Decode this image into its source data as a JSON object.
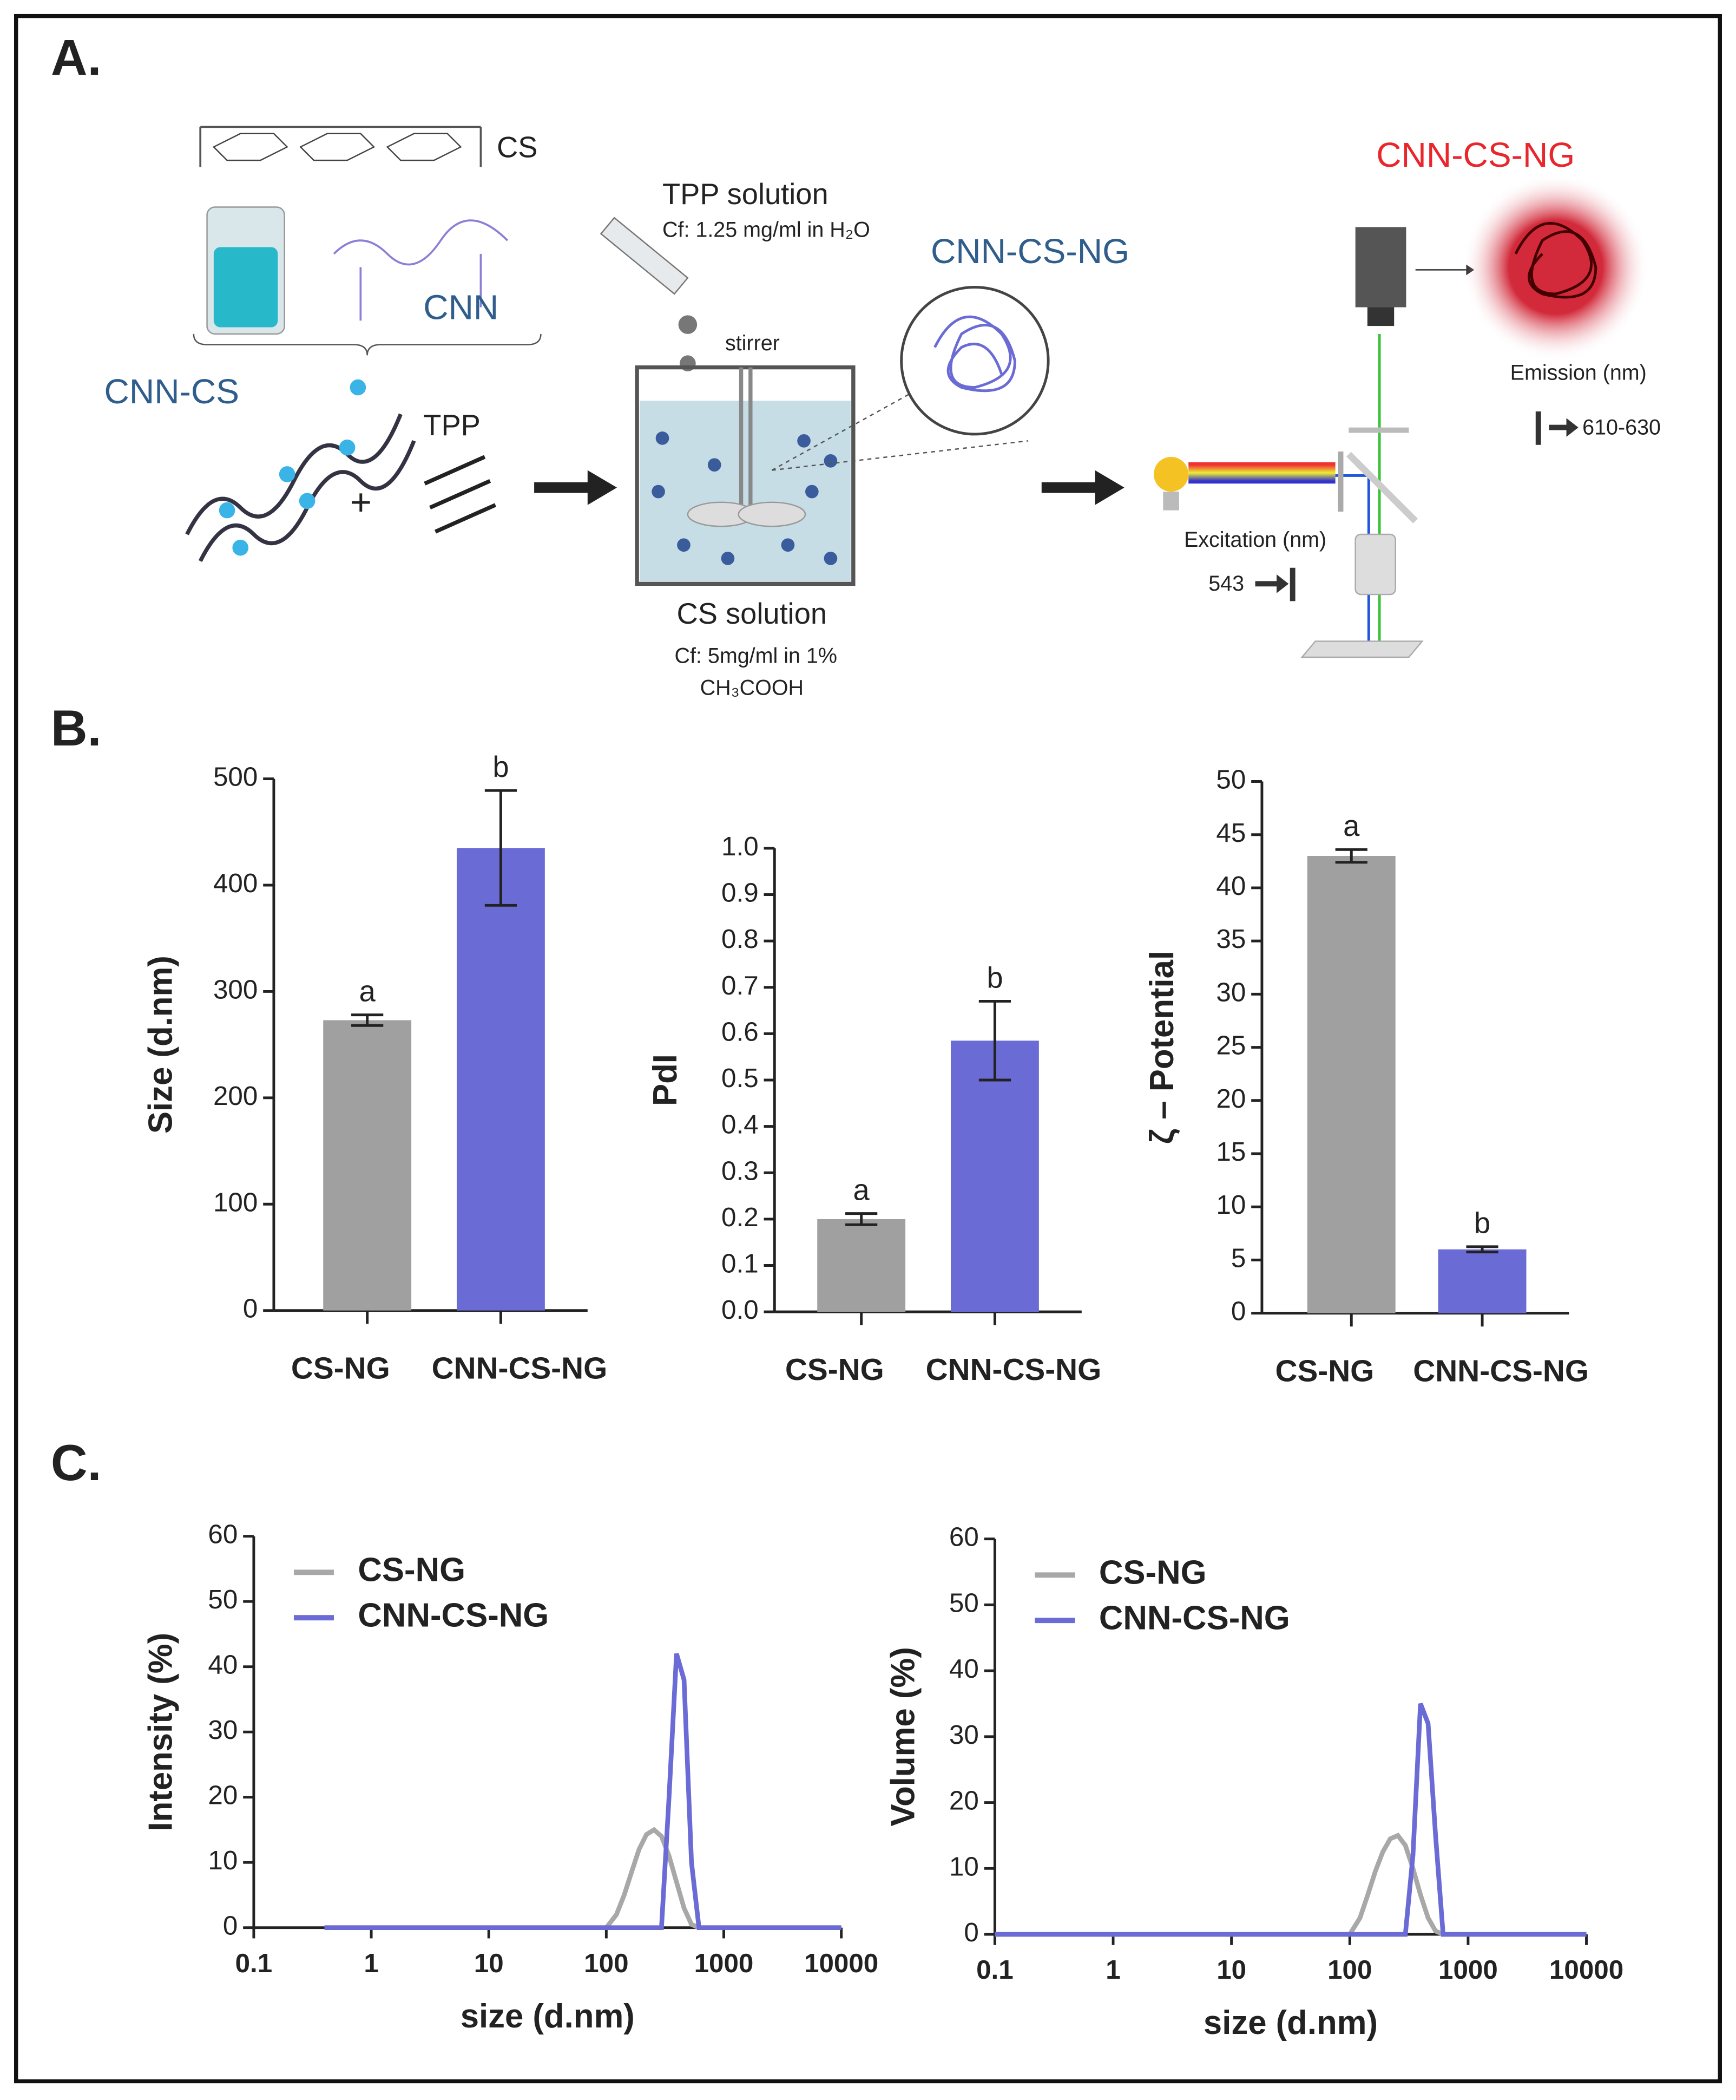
{
  "panels": [
    "A.",
    "B.",
    "C."
  ],
  "diagram": {
    "cs": "CS",
    "cnn": "CNN",
    "cnn_cs": "CNN-CS",
    "tpp": "TPP",
    "plus": "+",
    "tpp_solution": "TPP solution",
    "tpp_conc": "Cf: 1.25 mg/ml in H₂O",
    "stirrer": "stirrer",
    "ng_blue": "CNN-CS-NG",
    "cs_solution": "CS solution",
    "cs_conc": "Cf: 5mg/ml in 1%",
    "acid": "CH₃COOH",
    "ng_red": "CNN-CS-NG",
    "emission": "Emission (nm)",
    "emission_range": "610-630",
    "excitation": "Excitation (nm)",
    "excitation_value": "543"
  },
  "chart_data": [
    {
      "type": "bar",
      "ylabel": "Size (d.nm)",
      "categories": [
        "CS-NG",
        "CNN-CS-NG"
      ],
      "values": [
        273,
        435
      ],
      "errors": [
        5,
        54
      ],
      "annotations": [
        "a",
        "b"
      ],
      "colors": [
        "#a0a0a0",
        "#6b6bd6"
      ],
      "ylim": [
        0,
        500
      ],
      "yticks": [
        0,
        100,
        200,
        300,
        400,
        500
      ]
    },
    {
      "type": "bar",
      "ylabel": "PdI",
      "categories": [
        "CS-NG",
        "CNN-CS-NG"
      ],
      "values": [
        0.2,
        0.585
      ],
      "errors": [
        0.012,
        0.085
      ],
      "annotations": [
        "a",
        "b"
      ],
      "colors": [
        "#a0a0a0",
        "#6b6bd6"
      ],
      "ylim": [
        0,
        1
      ],
      "yticks": [
        {
          "value": 0,
          "label": "0.0"
        },
        0.1,
        0.2,
        0.3,
        0.4,
        0.5,
        0.6,
        0.7,
        0.8,
        0.9,
        {
          "value": 1,
          "label": "1.0"
        }
      ]
    },
    {
      "type": "bar",
      "ylabel": "ζ – Potential",
      "categories": [
        "CS-NG",
        "CNN-CS-NG"
      ],
      "values": [
        43,
        6
      ],
      "errors": [
        0.6,
        0.25
      ],
      "annotations": [
        "a",
        "b"
      ],
      "colors": [
        "#a0a0a0",
        "#6b6bd6"
      ],
      "ylim": [
        0,
        50
      ],
      "yticks": [
        0,
        5,
        10,
        15,
        20,
        25,
        30,
        35,
        40,
        45,
        50
      ]
    },
    {
      "type": "line",
      "xlabel": "size (d.nm)",
      "ylabel": "Intensity (%)",
      "xscale": "log",
      "legend": "upper left",
      "x": [
        0.4,
        100,
        122,
        142,
        164,
        190,
        220,
        255,
        295,
        342,
        396,
        459,
        531,
        615,
        712,
        825,
        10000
      ],
      "series": [
        {
          "name": "CS-NG",
          "color": "#a8a8a8",
          "values": [
            0,
            0,
            2,
            5,
            8.5,
            12,
            14.3,
            15,
            14,
            11,
            7,
            3,
            0.5,
            0,
            0,
            0,
            0
          ]
        },
        {
          "name": "CNN-CS-NG",
          "color": "#6b6bd6",
          "values": [
            0,
            0,
            0,
            0,
            0,
            0,
            0,
            0,
            0,
            20,
            42,
            38,
            10,
            0,
            0,
            0,
            0
          ]
        }
      ],
      "xlim": [
        0.1,
        10000
      ],
      "xticks": [
        0.1,
        1,
        10,
        100,
        1000,
        10000
      ],
      "ylim": [
        0,
        60
      ],
      "yticks": [
        0,
        10,
        20,
        30,
        40,
        50,
        60
      ]
    },
    {
      "type": "line",
      "xlabel": "size (d.nm)",
      "ylabel": "Volume (%)",
      "xscale": "log",
      "legend": "upper left",
      "x": [
        0.1,
        100,
        122,
        142,
        164,
        190,
        220,
        255,
        295,
        342,
        396,
        459,
        531,
        615,
        712,
        825,
        10000
      ],
      "series": [
        {
          "name": "CS-NG",
          "color": "#a8a8a8",
          "values": [
            0,
            0,
            2.5,
            6,
            9.5,
            12.5,
            14.5,
            15,
            13.5,
            10,
            6,
            2.5,
            0.5,
            0,
            0,
            0,
            0
          ]
        },
        {
          "name": "CNN-CS-NG",
          "color": "#6b6bd6",
          "values": [
            0,
            0,
            0,
            0,
            0,
            0,
            0,
            0,
            0,
            12,
            35,
            32,
            15,
            0,
            0,
            0,
            0
          ]
        }
      ],
      "xlim": [
        0.1,
        10000
      ],
      "xticks": [
        0.1,
        1,
        10,
        100,
        1000,
        10000
      ],
      "ylim": [
        0,
        60
      ],
      "yticks": [
        0,
        10,
        20,
        30,
        40,
        50,
        60
      ]
    }
  ]
}
